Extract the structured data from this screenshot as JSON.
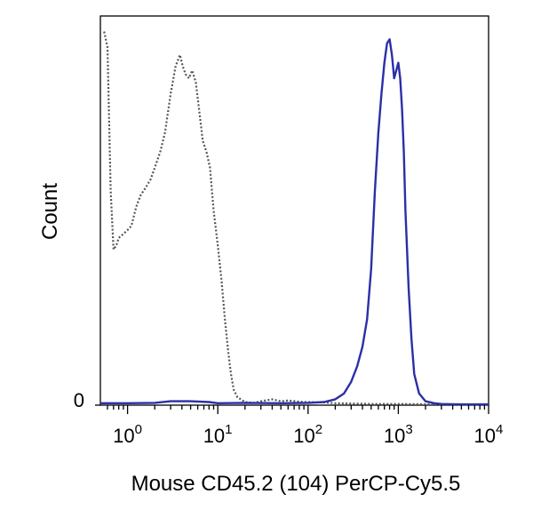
{
  "chart_data": {
    "type": "line",
    "title": "",
    "xlabel": "Mouse CD45.2 (104) PerCP-Cy5.5",
    "ylabel": "Count",
    "x_scale": "log",
    "xlim": [
      0.5,
      10000
    ],
    "ylim": [
      0,
      100
    ],
    "grid": false,
    "legend": "none",
    "x_ticks": [
      {
        "base": "10",
        "exp": "0",
        "value": 1
      },
      {
        "base": "10",
        "exp": "1",
        "value": 10
      },
      {
        "base": "10",
        "exp": "2",
        "value": 100
      },
      {
        "base": "10",
        "exp": "3",
        "value": 1000
      },
      {
        "base": "10",
        "exp": "4",
        "value": 10000
      }
    ],
    "y_ticks": [
      {
        "label": "0",
        "value": 0
      }
    ],
    "series": [
      {
        "style": "dotted",
        "color": "#555555",
        "x": [
          0.55,
          0.6,
          0.65,
          0.7,
          0.75,
          0.8,
          0.9,
          1.0,
          1.1,
          1.25,
          1.4,
          1.6,
          1.8,
          2.0,
          2.3,
          2.6,
          3.0,
          3.4,
          3.8,
          4.1,
          4.4,
          4.8,
          5.2,
          5.7,
          6.2,
          6.8,
          7.5,
          8.2,
          9.0,
          10,
          11,
          12,
          13,
          14,
          15,
          16.5,
          18,
          20,
          25,
          30,
          40,
          50,
          60,
          80,
          100,
          150,
          200,
          300,
          500,
          1000,
          3000,
          10000
        ],
        "y": [
          96,
          92,
          55,
          40,
          41,
          43,
          44,
          45,
          46,
          51,
          54,
          56,
          58,
          61,
          65,
          70,
          80,
          87,
          90,
          87,
          85,
          84,
          86,
          83,
          76,
          68,
          65,
          61,
          50,
          41,
          32,
          22,
          14,
          8,
          4,
          2,
          1.5,
          0.8,
          0.6,
          1,
          1.5,
          1,
          1.2,
          0.9,
          0.8,
          0.7,
          0.5,
          0.4,
          0.3,
          0.3,
          0.2,
          0.2
        ]
      },
      {
        "style": "solid",
        "color": "#2b2fa8",
        "x": [
          0.5,
          1.0,
          2.0,
          3.0,
          5.0,
          8.0,
          10,
          20,
          50,
          100,
          150,
          200,
          250,
          300,
          350,
          400,
          450,
          500,
          550,
          600,
          650,
          700,
          750,
          800,
          850,
          900,
          950,
          1000,
          1050,
          1100,
          1150,
          1200,
          1300,
          1400,
          1500,
          1700,
          2000,
          2500,
          3000,
          5000,
          10000
        ],
        "y": [
          0.5,
          0.5,
          0.6,
          1,
          1,
          0.8,
          0.5,
          0.6,
          0.5,
          0.6,
          0.8,
          1.5,
          3,
          6,
          10,
          15,
          22,
          35,
          55,
          70,
          80,
          88,
          93,
          94,
          90,
          84,
          86,
          88,
          84,
          76,
          65,
          50,
          30,
          17,
          8,
          3,
          1,
          0.5,
          0.3,
          0.2,
          0.2
        ]
      }
    ]
  }
}
